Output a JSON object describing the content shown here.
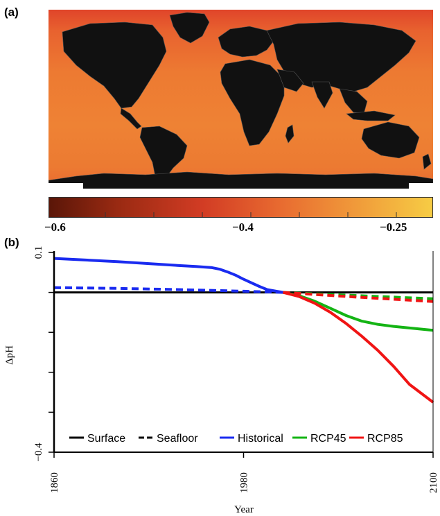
{
  "panel_a": {
    "label": "(a)",
    "colorbar": {
      "ticks": [
        "−0.6",
        "−0.4",
        "−0.25"
      ],
      "tick_values": [
        -0.6,
        -0.4,
        -0.25
      ],
      "range": [
        -0.6,
        -0.2
      ],
      "colors": [
        "#5a1608",
        "#d23c24",
        "#e86a30",
        "#f6cc44"
      ]
    },
    "ocean_colors": {
      "north": "#e0452a",
      "mid": "#ee8234"
    },
    "land_color": "#111111"
  },
  "panel_b": {
    "label": "(b)"
  },
  "chart_data": {
    "type": "line",
    "title": "",
    "xlabel": "Year",
    "ylabel": "ΔpH",
    "xlim": [
      1860,
      2100
    ],
    "ylim": [
      -0.4,
      0.1
    ],
    "x_ticks": [
      "1860",
      "1980",
      "2100"
    ],
    "y_ticks": [
      "0.1",
      "−0.4"
    ],
    "legend_position": "bottom",
    "legend": [
      {
        "label": "Surface",
        "style": "solid",
        "color": "#000000"
      },
      {
        "label": "Seafloor",
        "style": "dashed",
        "color": "#000000"
      },
      {
        "label": "Historical",
        "style": "solid",
        "color": "#1a2bf0"
      },
      {
        "label": "RCP45",
        "style": "solid",
        "color": "#14b414"
      },
      {
        "label": "RCP85",
        "style": "solid",
        "color": "#f01414"
      }
    ],
    "series": [
      {
        "name": "Historical",
        "layer": "Surface",
        "color": "#1a2bf0",
        "dash": false,
        "x": [
          1860,
          1880,
          1900,
          1920,
          1940,
          1950,
          1960,
          1965,
          1970,
          1975,
          1980,
          1985,
          1990,
          1995,
          2005
        ],
        "y": [
          0.085,
          0.081,
          0.077,
          0.072,
          0.067,
          0.065,
          0.062,
          0.058,
          0.051,
          0.043,
          0.033,
          0.024,
          0.015,
          0.007,
          0.0
        ]
      },
      {
        "name": "Historical",
        "layer": "Seafloor",
        "color": "#1a2bf0",
        "dash": true,
        "x": [
          1860,
          1900,
          1940,
          1980,
          2005
        ],
        "y": [
          0.012,
          0.01,
          0.007,
          0.003,
          0.0
        ]
      },
      {
        "name": "RCP45",
        "layer": "Surface",
        "color": "#14b414",
        "dash": false,
        "x": [
          2005,
          2015,
          2025,
          2035,
          2045,
          2055,
          2065,
          2075,
          2085,
          2100
        ],
        "y": [
          0.0,
          -0.008,
          -0.022,
          -0.04,
          -0.058,
          -0.072,
          -0.08,
          -0.085,
          -0.089,
          -0.095
        ]
      },
      {
        "name": "RCP45",
        "layer": "Seafloor",
        "color": "#14b414",
        "dash": true,
        "x": [
          2005,
          2040,
          2070,
          2100
        ],
        "y": [
          0.0,
          -0.006,
          -0.011,
          -0.016
        ]
      },
      {
        "name": "RCP85",
        "layer": "Surface",
        "color": "#f01414",
        "dash": false,
        "x": [
          2005,
          2015,
          2025,
          2035,
          2045,
          2055,
          2065,
          2075,
          2085,
          2100
        ],
        "y": [
          0.0,
          -0.01,
          -0.027,
          -0.05,
          -0.078,
          -0.11,
          -0.145,
          -0.185,
          -0.23,
          -0.275
        ]
      },
      {
        "name": "RCP85",
        "layer": "Seafloor",
        "color": "#f01414",
        "dash": true,
        "x": [
          2005,
          2040,
          2070,
          2100
        ],
        "y": [
          0.0,
          -0.009,
          -0.016,
          -0.023
        ]
      }
    ]
  }
}
